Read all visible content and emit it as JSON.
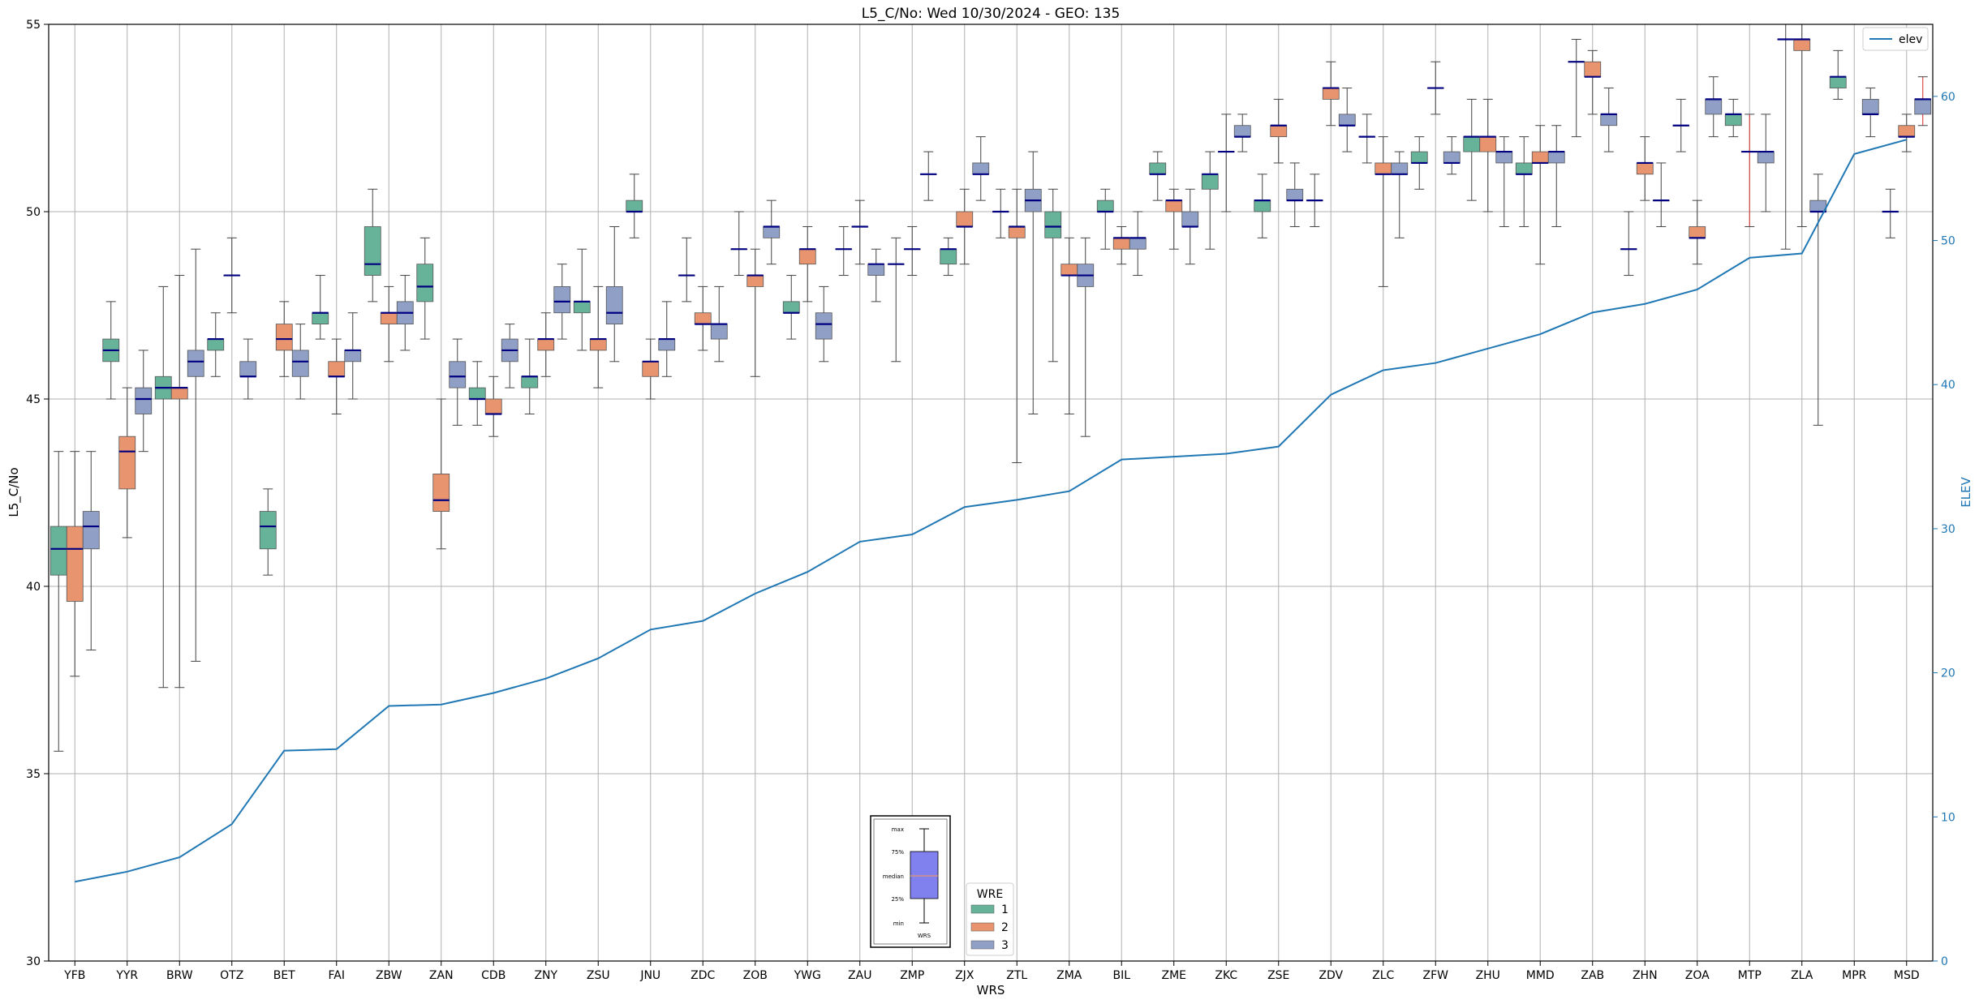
{
  "chart_data": {
    "type": "box+line",
    "title": "L5_C/No: Wed 10/30/2024 - GEO: 135",
    "xlabel": "WRS",
    "ylabel": "L5_C/No",
    "y2label": "ELEV",
    "ylim": [
      30,
      55
    ],
    "y2lim": [
      0,
      65
    ],
    "yticks": [
      30,
      35,
      40,
      45,
      50,
      55
    ],
    "y2ticks": [
      0,
      10,
      20,
      30,
      40,
      50,
      60
    ],
    "grid": true,
    "categories": [
      "YFB",
      "YYR",
      "BRW",
      "OTZ",
      "BET",
      "FAI",
      "ZBW",
      "ZAN",
      "CDB",
      "ZNY",
      "ZSU",
      "JNU",
      "ZDC",
      "ZOB",
      "YWG",
      "ZAU",
      "ZMP",
      "ZJX",
      "ZTL",
      "ZMA",
      "BIL",
      "ZME",
      "ZKC",
      "ZSE",
      "ZDV",
      "ZLC",
      "ZFW",
      "ZHU",
      "MMD",
      "ZAB",
      "ZHN",
      "ZOA",
      "MTP",
      "ZLA",
      "MPR",
      "MSD"
    ],
    "elev_series": {
      "name": "elev",
      "color": "#1f77b4",
      "values": [
        5.5,
        6.2,
        7.2,
        9.5,
        14.6,
        14.7,
        17.7,
        17.8,
        18.6,
        19.6,
        21.0,
        23.0,
        23.6,
        25.5,
        27.0,
        29.1,
        29.6,
        31.5,
        32.0,
        32.6,
        34.8,
        35.0,
        35.2,
        35.7,
        39.3,
        41.0,
        41.5,
        42.5,
        43.5,
        45.0,
        45.6,
        46.6,
        48.8,
        49.1,
        56.0,
        57.0
      ]
    },
    "legend_wre": {
      "title": "WRE",
      "placement": "bottom-center",
      "items": [
        {
          "label": "1",
          "color": "#66b39a"
        },
        {
          "label": "2",
          "color": "#e8946e"
        },
        {
          "label": "3",
          "color": "#8f9fc6"
        }
      ]
    },
    "legend_elev": {
      "label": "elev",
      "placement": "top-right"
    },
    "box_key": {
      "labels": [
        "max",
        "75%",
        "median",
        "25%",
        "min"
      ],
      "xlabel": "WRS"
    },
    "boxes": [
      {
        "cat": "YFB",
        "wre": 1,
        "whislo": 35.6,
        "q1": 40.3,
        "med": 41.0,
        "q3": 41.6,
        "whishi": 43.6
      },
      {
        "cat": "YFB",
        "wre": 2,
        "whislo": 37.6,
        "q1": 39.6,
        "med": 41.0,
        "q3": 41.6,
        "whishi": 43.6
      },
      {
        "cat": "YFB",
        "wre": 3,
        "whislo": 38.3,
        "q1": 41.0,
        "med": 41.6,
        "q3": 42.0,
        "whishi": 43.6
      },
      {
        "cat": "YYR",
        "wre": 1,
        "whislo": 45.0,
        "q1": 46.0,
        "med": 46.3,
        "q3": 46.6,
        "whishi": 47.6
      },
      {
        "cat": "YYR",
        "wre": 2,
        "whislo": 41.3,
        "q1": 42.6,
        "med": 43.6,
        "q3": 44.0,
        "whishi": 45.3
      },
      {
        "cat": "YYR",
        "wre": 3,
        "whislo": 43.6,
        "q1": 44.6,
        "med": 45.0,
        "q3": 45.3,
        "whishi": 46.3
      },
      {
        "cat": "BRW",
        "wre": 1,
        "whislo": 37.3,
        "q1": 45.0,
        "med": 45.3,
        "q3": 45.6,
        "whishi": 48.0
      },
      {
        "cat": "BRW",
        "wre": 2,
        "whislo": 37.3,
        "q1": 45.0,
        "med": 45.3,
        "q3": 45.3,
        "whishi": 48.3
      },
      {
        "cat": "BRW",
        "wre": 3,
        "whislo": 38.0,
        "q1": 45.6,
        "med": 46.0,
        "q3": 46.3,
        "whishi": 49.0
      },
      {
        "cat": "OTZ",
        "wre": 1,
        "whislo": 45.6,
        "q1": 46.3,
        "med": 46.6,
        "q3": 46.6,
        "whishi": 47.3
      },
      {
        "cat": "OTZ",
        "wre": 2,
        "whislo": 47.3,
        "q1": 48.3,
        "med": 48.3,
        "q3": 48.3,
        "whishi": 49.3
      },
      {
        "cat": "OTZ",
        "wre": 3,
        "whislo": 45.0,
        "q1": 45.6,
        "med": 45.6,
        "q3": 46.0,
        "whishi": 46.6
      },
      {
        "cat": "BET",
        "wre": 1,
        "whislo": 40.3,
        "q1": 41.0,
        "med": 41.6,
        "q3": 42.0,
        "whishi": 42.6
      },
      {
        "cat": "BET",
        "wre": 2,
        "whislo": 45.6,
        "q1": 46.3,
        "med": 46.6,
        "q3": 47.0,
        "whishi": 47.6
      },
      {
        "cat": "BET",
        "wre": 3,
        "whislo": 45.0,
        "q1": 45.6,
        "med": 46.0,
        "q3": 46.3,
        "whishi": 47.0
      },
      {
        "cat": "FAI",
        "wre": 1,
        "whislo": 46.6,
        "q1": 47.0,
        "med": 47.3,
        "q3": 47.3,
        "whishi": 48.3
      },
      {
        "cat": "FAI",
        "wre": 2,
        "whislo": 44.6,
        "q1": 45.6,
        "med": 45.6,
        "q3": 46.0,
        "whishi": 46.6
      },
      {
        "cat": "FAI",
        "wre": 3,
        "whislo": 45.0,
        "q1": 46.0,
        "med": 46.3,
        "q3": 46.3,
        "whishi": 47.3
      },
      {
        "cat": "ZBW",
        "wre": 1,
        "whislo": 47.6,
        "q1": 48.3,
        "med": 48.6,
        "q3": 49.6,
        "whishi": 50.6
      },
      {
        "cat": "ZBW",
        "wre": 2,
        "whislo": 46.0,
        "q1": 47.0,
        "med": 47.3,
        "q3": 47.3,
        "whishi": 48.0
      },
      {
        "cat": "ZBW",
        "wre": 3,
        "whislo": 46.3,
        "q1": 47.0,
        "med": 47.3,
        "q3": 47.6,
        "whishi": 48.3
      },
      {
        "cat": "ZAN",
        "wre": 1,
        "whislo": 46.6,
        "q1": 47.6,
        "med": 48.0,
        "q3": 48.6,
        "whishi": 49.3
      },
      {
        "cat": "ZAN",
        "wre": 2,
        "whislo": 41.0,
        "q1": 42.0,
        "med": 42.3,
        "q3": 43.0,
        "whishi": 45.0
      },
      {
        "cat": "ZAN",
        "wre": 3,
        "whislo": 44.3,
        "q1": 45.3,
        "med": 45.6,
        "q3": 46.0,
        "whishi": 46.6
      },
      {
        "cat": "CDB",
        "wre": 1,
        "whislo": 44.3,
        "q1": 45.0,
        "med": 45.0,
        "q3": 45.3,
        "whishi": 46.0
      },
      {
        "cat": "CDB",
        "wre": 2,
        "whislo": 44.0,
        "q1": 44.6,
        "med": 44.6,
        "q3": 45.0,
        "whishi": 45.6
      },
      {
        "cat": "CDB",
        "wre": 3,
        "whislo": 45.3,
        "q1": 46.0,
        "med": 46.3,
        "q3": 46.6,
        "whishi": 47.0
      },
      {
        "cat": "ZNY",
        "wre": 1,
        "whislo": 44.6,
        "q1": 45.3,
        "med": 45.6,
        "q3": 45.6,
        "whishi": 46.6
      },
      {
        "cat": "ZNY",
        "wre": 2,
        "whislo": 45.6,
        "q1": 46.3,
        "med": 46.6,
        "q3": 46.6,
        "whishi": 47.3
      },
      {
        "cat": "ZNY",
        "wre": 3,
        "whislo": 46.6,
        "q1": 47.3,
        "med": 47.6,
        "q3": 48.0,
        "whishi": 48.6
      },
      {
        "cat": "ZSU",
        "wre": 1,
        "whislo": 46.3,
        "q1": 47.3,
        "med": 47.6,
        "q3": 47.6,
        "whishi": 49.0
      },
      {
        "cat": "ZSU",
        "wre": 2,
        "whislo": 45.3,
        "q1": 46.3,
        "med": 46.6,
        "q3": 46.6,
        "whishi": 48.0
      },
      {
        "cat": "ZSU",
        "wre": 3,
        "whislo": 46.0,
        "q1": 47.0,
        "med": 47.3,
        "q3": 48.0,
        "whishi": 49.6
      },
      {
        "cat": "JNU",
        "wre": 1,
        "whislo": 49.3,
        "q1": 50.0,
        "med": 50.0,
        "q3": 50.3,
        "whishi": 51.0
      },
      {
        "cat": "JNU",
        "wre": 2,
        "whislo": 45.0,
        "q1": 45.6,
        "med": 46.0,
        "q3": 46.0,
        "whishi": 46.6
      },
      {
        "cat": "JNU",
        "wre": 3,
        "whislo": 45.6,
        "q1": 46.3,
        "med": 46.6,
        "q3": 46.6,
        "whishi": 47.6
      },
      {
        "cat": "ZDC",
        "wre": 1,
        "whislo": 47.6,
        "q1": 48.3,
        "med": 48.3,
        "q3": 48.3,
        "whishi": 49.3
      },
      {
        "cat": "ZDC",
        "wre": 2,
        "whislo": 46.3,
        "q1": 47.0,
        "med": 47.0,
        "q3": 47.3,
        "whishi": 48.0
      },
      {
        "cat": "ZDC",
        "wre": 3,
        "whislo": 46.0,
        "q1": 46.6,
        "med": 47.0,
        "q3": 47.0,
        "whishi": 48.0
      },
      {
        "cat": "ZOB",
        "wre": 1,
        "whislo": 48.3,
        "q1": 49.0,
        "med": 49.0,
        "q3": 49.0,
        "whishi": 50.0
      },
      {
        "cat": "ZOB",
        "wre": 2,
        "whislo": 45.6,
        "q1": 48.0,
        "med": 48.3,
        "q3": 48.3,
        "whishi": 49.0
      },
      {
        "cat": "ZOB",
        "wre": 3,
        "whislo": 48.6,
        "q1": 49.3,
        "med": 49.6,
        "q3": 49.6,
        "whishi": 50.3
      },
      {
        "cat": "YWG",
        "wre": 1,
        "whislo": 46.6,
        "q1": 47.3,
        "med": 47.3,
        "q3": 47.6,
        "whishi": 48.3
      },
      {
        "cat": "YWG",
        "wre": 2,
        "whislo": 47.6,
        "q1": 48.6,
        "med": 49.0,
        "q3": 49.0,
        "whishi": 49.6
      },
      {
        "cat": "YWG",
        "wre": 3,
        "whislo": 46.0,
        "q1": 46.6,
        "med": 47.0,
        "q3": 47.3,
        "whishi": 48.0
      },
      {
        "cat": "ZAU",
        "wre": 1,
        "whislo": 48.3,
        "q1": 49.0,
        "med": 49.0,
        "q3": 49.0,
        "whishi": 49.6
      },
      {
        "cat": "ZAU",
        "wre": 2,
        "whislo": 48.6,
        "q1": 49.6,
        "med": 49.6,
        "q3": 49.6,
        "whishi": 50.3
      },
      {
        "cat": "ZAU",
        "wre": 3,
        "whislo": 47.6,
        "q1": 48.3,
        "med": 48.6,
        "q3": 48.6,
        "whishi": 49.0
      },
      {
        "cat": "ZMP",
        "wre": 1,
        "whislo": 46.0,
        "q1": 48.6,
        "med": 48.6,
        "q3": 48.6,
        "whishi": 49.3
      },
      {
        "cat": "ZMP",
        "wre": 2,
        "whislo": 48.3,
        "q1": 49.0,
        "med": 49.0,
        "q3": 49.0,
        "whishi": 49.6
      },
      {
        "cat": "ZMP",
        "wre": 3,
        "whislo": 50.3,
        "q1": 51.0,
        "med": 51.0,
        "q3": 51.0,
        "whishi": 51.6
      },
      {
        "cat": "ZJX",
        "wre": 1,
        "whislo": 48.3,
        "q1": 48.6,
        "med": 49.0,
        "q3": 49.0,
        "whishi": 49.3
      },
      {
        "cat": "ZJX",
        "wre": 2,
        "whislo": 48.6,
        "q1": 49.6,
        "med": 49.6,
        "q3": 50.0,
        "whishi": 50.6
      },
      {
        "cat": "ZJX",
        "wre": 3,
        "whislo": 50.3,
        "q1": 51.0,
        "med": 51.0,
        "q3": 51.3,
        "whishi": 52.0
      },
      {
        "cat": "ZTL",
        "wre": 1,
        "whislo": 49.3,
        "q1": 50.0,
        "med": 50.0,
        "q3": 50.0,
        "whishi": 50.6
      },
      {
        "cat": "ZTL",
        "wre": 2,
        "whislo": 43.3,
        "q1": 49.3,
        "med": 49.6,
        "q3": 49.6,
        "whishi": 50.6
      },
      {
        "cat": "ZTL",
        "wre": 3,
        "whislo": 44.6,
        "q1": 50.0,
        "med": 50.3,
        "q3": 50.6,
        "whishi": 51.6
      },
      {
        "cat": "ZMA",
        "wre": 1,
        "whislo": 46.0,
        "q1": 49.3,
        "med": 49.6,
        "q3": 50.0,
        "whishi": 50.6
      },
      {
        "cat": "ZMA",
        "wre": 2,
        "whislo": 44.6,
        "q1": 48.3,
        "med": 48.3,
        "q3": 48.6,
        "whishi": 49.3
      },
      {
        "cat": "ZMA",
        "wre": 3,
        "whislo": 44.0,
        "q1": 48.0,
        "med": 48.3,
        "q3": 48.6,
        "whishi": 49.3
      },
      {
        "cat": "BIL",
        "wre": 1,
        "whislo": 49.0,
        "q1": 50.0,
        "med": 50.0,
        "q3": 50.3,
        "whishi": 50.6
      },
      {
        "cat": "BIL",
        "wre": 2,
        "whislo": 48.6,
        "q1": 49.0,
        "med": 49.3,
        "q3": 49.3,
        "whishi": 49.6
      },
      {
        "cat": "BIL",
        "wre": 3,
        "whislo": 48.3,
        "q1": 49.0,
        "med": 49.3,
        "q3": 49.3,
        "whishi": 50.0
      },
      {
        "cat": "ZME",
        "wre": 1,
        "whislo": 50.3,
        "q1": 51.0,
        "med": 51.0,
        "q3": 51.3,
        "whishi": 51.6
      },
      {
        "cat": "ZME",
        "wre": 2,
        "whislo": 49.0,
        "q1": 50.0,
        "med": 50.3,
        "q3": 50.3,
        "whishi": 50.6
      },
      {
        "cat": "ZME",
        "wre": 3,
        "whislo": 48.6,
        "q1": 49.6,
        "med": 49.6,
        "q3": 50.0,
        "whishi": 50.6
      },
      {
        "cat": "ZKC",
        "wre": 1,
        "whislo": 49.0,
        "q1": 50.6,
        "med": 51.0,
        "q3": 51.0,
        "whishi": 51.6
      },
      {
        "cat": "ZKC",
        "wre": 2,
        "whislo": 50.0,
        "q1": 51.6,
        "med": 51.6,
        "q3": 51.6,
        "whishi": 52.6
      },
      {
        "cat": "ZKC",
        "wre": 3,
        "whislo": 51.6,
        "q1": 52.0,
        "med": 52.0,
        "q3": 52.3,
        "whishi": 52.6
      },
      {
        "cat": "ZSE",
        "wre": 1,
        "whislo": 49.3,
        "q1": 50.0,
        "med": 50.3,
        "q3": 50.3,
        "whishi": 51.0
      },
      {
        "cat": "ZSE",
        "wre": 2,
        "whislo": 51.3,
        "q1": 52.0,
        "med": 52.3,
        "q3": 52.3,
        "whishi": 53.0
      },
      {
        "cat": "ZSE",
        "wre": 3,
        "whislo": 49.6,
        "q1": 50.3,
        "med": 50.3,
        "q3": 50.6,
        "whishi": 51.3
      },
      {
        "cat": "ZDV",
        "wre": 1,
        "whislo": 49.6,
        "q1": 50.3,
        "med": 50.3,
        "q3": 50.3,
        "whishi": 51.0
      },
      {
        "cat": "ZDV",
        "wre": 2,
        "whislo": 52.3,
        "q1": 53.0,
        "med": 53.3,
        "q3": 53.3,
        "whishi": 54.0
      },
      {
        "cat": "ZDV",
        "wre": 3,
        "whislo": 51.6,
        "q1": 52.3,
        "med": 52.3,
        "q3": 52.6,
        "whishi": 53.3
      },
      {
        "cat": "ZLC",
        "wre": 1,
        "whislo": 51.3,
        "q1": 52.0,
        "med": 52.0,
        "q3": 52.0,
        "whishi": 52.6
      },
      {
        "cat": "ZLC",
        "wre": 2,
        "whislo": 48.0,
        "q1": 51.0,
        "med": 51.0,
        "q3": 51.3,
        "whishi": 52.0
      },
      {
        "cat": "ZLC",
        "wre": 3,
        "whislo": 49.3,
        "q1": 51.0,
        "med": 51.0,
        "q3": 51.3,
        "whishi": 51.6
      },
      {
        "cat": "ZFW",
        "wre": 1,
        "whislo": 50.6,
        "q1": 51.3,
        "med": 51.3,
        "q3": 51.6,
        "whishi": 52.0
      },
      {
        "cat": "ZFW",
        "wre": 2,
        "whislo": 52.6,
        "q1": 53.3,
        "med": 53.3,
        "q3": 53.3,
        "whishi": 54.0
      },
      {
        "cat": "ZFW",
        "wre": 3,
        "whislo": 51.0,
        "q1": 51.3,
        "med": 51.3,
        "q3": 51.6,
        "whishi": 52.0
      },
      {
        "cat": "ZHU",
        "wre": 1,
        "whislo": 50.3,
        "q1": 51.6,
        "med": 52.0,
        "q3": 52.0,
        "whishi": 53.0
      },
      {
        "cat": "ZHU",
        "wre": 2,
        "whislo": 50.0,
        "q1": 51.6,
        "med": 52.0,
        "q3": 52.0,
        "whishi": 53.0
      },
      {
        "cat": "ZHU",
        "wre": 3,
        "whislo": 49.6,
        "q1": 51.3,
        "med": 51.6,
        "q3": 51.6,
        "whishi": 52.0
      },
      {
        "cat": "MMD",
        "wre": 1,
        "whislo": 49.6,
        "q1": 51.0,
        "med": 51.0,
        "q3": 51.3,
        "whishi": 52.0
      },
      {
        "cat": "MMD",
        "wre": 2,
        "whislo": 48.6,
        "q1": 51.3,
        "med": 51.3,
        "q3": 51.6,
        "whishi": 52.3
      },
      {
        "cat": "MMD",
        "wre": 3,
        "whislo": 49.6,
        "q1": 51.3,
        "med": 51.6,
        "q3": 51.6,
        "whishi": 52.3
      },
      {
        "cat": "ZAB",
        "wre": 1,
        "whislo": 52.0,
        "q1": 54.0,
        "med": 54.0,
        "q3": 54.0,
        "whishi": 54.6
      },
      {
        "cat": "ZAB",
        "wre": 2,
        "whislo": 52.6,
        "q1": 53.6,
        "med": 53.6,
        "q3": 54.0,
        "whishi": 54.3
      },
      {
        "cat": "ZAB",
        "wre": 3,
        "whislo": 51.6,
        "q1": 52.3,
        "med": 52.6,
        "q3": 52.6,
        "whishi": 53.3
      },
      {
        "cat": "ZHN",
        "wre": 1,
        "whislo": 48.3,
        "q1": 49.0,
        "med": 49.0,
        "q3": 49.0,
        "whishi": 50.0
      },
      {
        "cat": "ZHN",
        "wre": 2,
        "whislo": 50.3,
        "q1": 51.0,
        "med": 51.3,
        "q3": 51.3,
        "whishi": 52.0
      },
      {
        "cat": "ZHN",
        "wre": 3,
        "whislo": 49.6,
        "q1": 50.3,
        "med": 50.3,
        "q3": 50.3,
        "whishi": 51.3
      },
      {
        "cat": "ZOA",
        "wre": 1,
        "whislo": 51.6,
        "q1": 52.3,
        "med": 52.3,
        "q3": 52.3,
        "whishi": 53.0
      },
      {
        "cat": "ZOA",
        "wre": 2,
        "whislo": 48.6,
        "q1": 49.3,
        "med": 49.3,
        "q3": 49.6,
        "whishi": 50.3
      },
      {
        "cat": "ZOA",
        "wre": 3,
        "whislo": 52.0,
        "q1": 52.6,
        "med": 53.0,
        "q3": 53.0,
        "whishi": 53.6
      },
      {
        "cat": "MTP",
        "wre": 1,
        "whislo": 52.0,
        "q1": 52.3,
        "med": 52.6,
        "q3": 52.6,
        "whishi": 53.0
      },
      {
        "cat": "MTP",
        "wre": 2,
        "whislo": 49.6,
        "q1": 51.6,
        "med": 51.6,
        "q3": 51.6,
        "whishi": 52.6
      },
      {
        "cat": "MTP",
        "wre": 3,
        "whislo": 50.0,
        "q1": 51.3,
        "med": 51.6,
        "q3": 51.6,
        "whishi": 52.6
      },
      {
        "cat": "ZLA",
        "wre": 1,
        "whislo": 49.0,
        "q1": 54.6,
        "med": 54.6,
        "q3": 54.6,
        "whishi": 55.0
      },
      {
        "cat": "ZLA",
        "wre": 2,
        "whislo": 49.6,
        "q1": 54.3,
        "med": 54.6,
        "q3": 54.6,
        "whishi": 55.0
      },
      {
        "cat": "ZLA",
        "wre": 3,
        "whislo": 44.3,
        "q1": 50.0,
        "med": 50.0,
        "q3": 50.3,
        "whishi": 51.0
      },
      {
        "cat": "MPR",
        "wre": 1,
        "whislo": 53.0,
        "q1": 53.3,
        "med": 53.6,
        "q3": 53.6,
        "whishi": 54.3
      },
      {
        "cat": "MPR",
        "wre": 3,
        "whislo": 52.0,
        "q1": 52.6,
        "med": 52.6,
        "q3": 53.0,
        "whishi": 53.3
      },
      {
        "cat": "MSD",
        "wre": 1,
        "whislo": 49.3,
        "q1": 50.0,
        "med": 50.0,
        "q3": 50.0,
        "whishi": 50.6
      },
      {
        "cat": "MSD",
        "wre": 2,
        "whislo": 51.6,
        "q1": 52.0,
        "med": 52.0,
        "q3": 52.3,
        "whishi": 52.6
      },
      {
        "cat": "MSD",
        "wre": 3,
        "whislo": 52.3,
        "q1": 52.6,
        "med": 53.0,
        "q3": 53.0,
        "whishi": 53.6
      }
    ]
  }
}
